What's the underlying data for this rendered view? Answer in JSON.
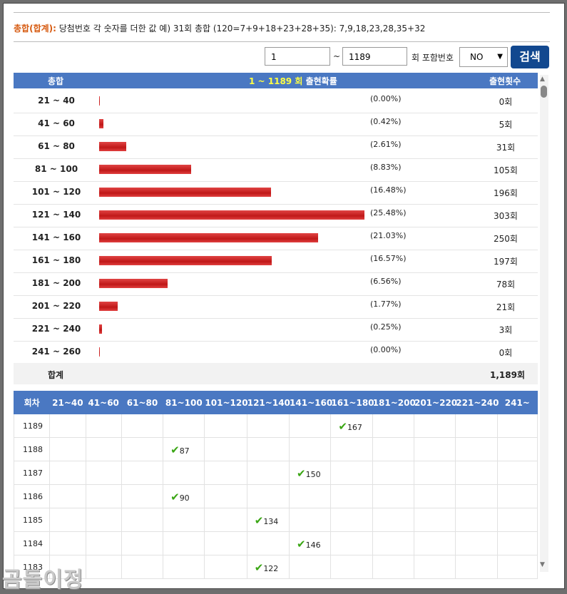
{
  "info": {
    "label": "총합(합계):",
    "text": "당첨번호 각 숫자를 더한 값 예) 31회 총합 (120=7+9+18+23+28+35): 7,9,18,23,28,35+32"
  },
  "search": {
    "from_value": "1",
    "tilde": "~",
    "to_value": "1189",
    "include_label": "회 포함번호",
    "include_select": "NO",
    "button_label": "검색"
  },
  "summary_table": {
    "headers": {
      "sum": "총합",
      "range_prefix": "1 ~ 1189 회",
      "range_suffix": " 출현확률",
      "count": "출현횟수"
    },
    "rows": [
      {
        "range": "21 ~ 40",
        "pct_text": "(0.00%)",
        "pct": 0.0,
        "count": "0회"
      },
      {
        "range": "41 ~ 60",
        "pct_text": "(0.42%)",
        "pct": 0.42,
        "count": "5회"
      },
      {
        "range": "61 ~ 80",
        "pct_text": "(2.61%)",
        "pct": 2.61,
        "count": "31회"
      },
      {
        "range": "81 ~ 100",
        "pct_text": "(8.83%)",
        "pct": 8.83,
        "count": "105회"
      },
      {
        "range": "101 ~ 120",
        "pct_text": "(16.48%)",
        "pct": 16.48,
        "count": "196회"
      },
      {
        "range": "121 ~ 140",
        "pct_text": "(25.48%)",
        "pct": 25.48,
        "count": "303회"
      },
      {
        "range": "141 ~ 160",
        "pct_text": "(21.03%)",
        "pct": 21.03,
        "count": "250회"
      },
      {
        "range": "161 ~ 180",
        "pct_text": "(16.57%)",
        "pct": 16.57,
        "count": "197회"
      },
      {
        "range": "181 ~ 200",
        "pct_text": "(6.56%)",
        "pct": 6.56,
        "count": "78회"
      },
      {
        "range": "201 ~ 220",
        "pct_text": "(1.77%)",
        "pct": 1.77,
        "count": "21회"
      },
      {
        "range": "221 ~ 240",
        "pct_text": "(0.25%)",
        "pct": 0.25,
        "count": "3회"
      },
      {
        "range": "241 ~ 260",
        "pct_text": "(0.00%)",
        "pct": 0.0,
        "count": "0회"
      }
    ],
    "total_label": "합계",
    "total_value": "1,189회"
  },
  "history_table": {
    "headers": [
      "회차",
      "21~40",
      "41~60",
      "61~80",
      "81~100",
      "101~120",
      "121~140",
      "141~160",
      "161~180",
      "181~200",
      "201~220",
      "221~240",
      "241~"
    ],
    "rows": [
      {
        "round": "1189",
        "col": 8,
        "sum": "167"
      },
      {
        "round": "1188",
        "col": 4,
        "sum": "87"
      },
      {
        "round": "1187",
        "col": 7,
        "sum": "150"
      },
      {
        "round": "1186",
        "col": 4,
        "sum": "90"
      },
      {
        "round": "1185",
        "col": 6,
        "sum": "134"
      },
      {
        "round": "1184",
        "col": 7,
        "sum": "146"
      },
      {
        "round": "1183",
        "col": 6,
        "sum": "122"
      }
    ]
  },
  "watermark": "곰돌이정",
  "colors": {
    "header_blue": "#4a78c2",
    "bar_red": "#c01818",
    "button_blue": "#12488f",
    "label_orange": "#d65a10",
    "check_green": "#3aa614"
  },
  "icons": {
    "check": "checkmark-icon",
    "select_arrow": "chevron-down-icon"
  }
}
